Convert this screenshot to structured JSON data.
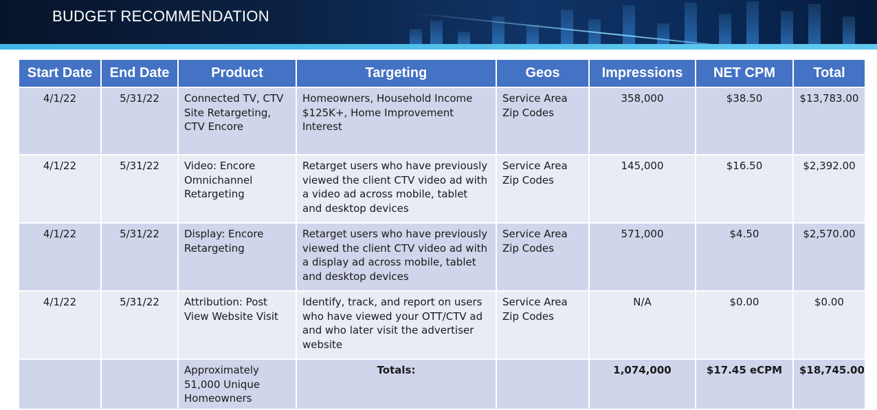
{
  "header": {
    "title": "BUDGET RECOMMENDATION"
  },
  "table": {
    "columns": [
      "Start Date",
      "End Date",
      "Product",
      "Targeting",
      "Geos",
      "Impressions",
      "NET CPM",
      "Total"
    ],
    "rows": [
      {
        "start_date": "4/1/22",
        "end_date": "5/31/22",
        "product": "Connected TV, CTV Site Retargeting, CTV Encore",
        "targeting": "Homeowners, Household Income $125K+, Home Improvement Interest",
        "geos": "Service Area Zip Codes",
        "impressions": "358,000",
        "net_cpm": "$38.50",
        "total": "$13,783.00"
      },
      {
        "start_date": "4/1/22",
        "end_date": "5/31/22",
        "product": "Video: Encore Omnichannel Retargeting",
        "targeting": "Retarget users who have previously viewed the client CTV video ad with a video ad across mobile, tablet and desktop devices",
        "geos": "Service Area Zip Codes",
        "impressions": "145,000",
        "net_cpm": "$16.50",
        "total": "$2,392.00"
      },
      {
        "start_date": "4/1/22",
        "end_date": "5/31/22",
        "product": "Display: Encore Retargeting",
        "targeting": "Retarget users who have previously viewed the client CTV video ad with a display ad across mobile, tablet and desktop devices",
        "geos": "Service Area Zip Codes",
        "impressions": "571,000",
        "net_cpm": "$4.50",
        "total": "$2,570.00"
      },
      {
        "start_date": "4/1/22",
        "end_date": "5/31/22",
        "product": "Attribution: Post View Website Visit",
        "targeting": "Identify, track, and report on users who have viewed your OTT/CTV ad and who later visit the advertiser website",
        "geos": "Service Area Zip Codes",
        "impressions": "N/A",
        "net_cpm": "$0.00",
        "total": "$0.00"
      }
    ],
    "totals": {
      "product": "Approximately 51,000 Unique Homeowners",
      "label": "Totals:",
      "impressions": "1,074,000",
      "net_cpm": "$17.45 eCPM",
      "total": "$18,745.00"
    }
  }
}
